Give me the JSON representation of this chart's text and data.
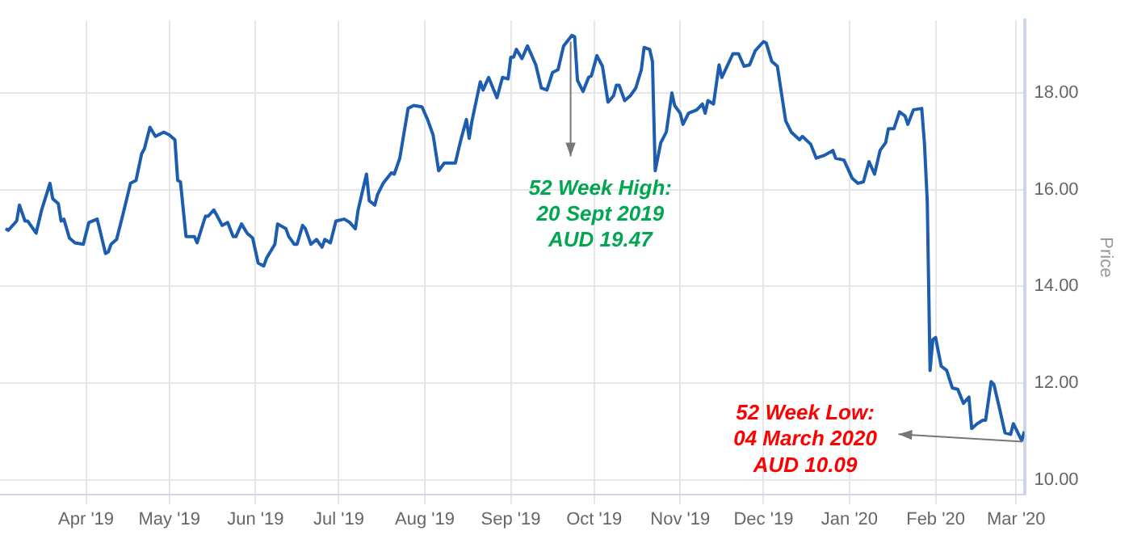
{
  "chart_data": {
    "type": "line",
    "ylabel": "Price",
    "annotations": [
      "52 Week High:\n20 Sept 2019\nAUD 19.47",
      "52 Week Low:\n04 March 2020\nAUD 10.09"
    ],
    "x": [
      "2019-03-03",
      "2019-03-04",
      "2019-03-07",
      "2019-03-08",
      "2019-03-10",
      "2019-03-11",
      "2019-03-14",
      "2019-03-16",
      "2019-03-19",
      "2019-03-20",
      "2019-03-22",
      "2019-03-23",
      "2019-03-24",
      "2019-03-26",
      "2019-03-28",
      "2019-03-31",
      "2019-04-02",
      "2019-04-05",
      "2019-04-06",
      "2019-04-08",
      "2019-04-09",
      "2019-04-10",
      "2019-04-12",
      "2019-04-14",
      "2019-04-17",
      "2019-04-19",
      "2019-04-21",
      "2019-04-22",
      "2019-04-24",
      "2019-04-26",
      "2019-04-29",
      "2019-05-01",
      "2019-05-03",
      "2019-05-04",
      "2019-05-05",
      "2019-05-07",
      "2019-05-10",
      "2019-05-11",
      "2019-05-14",
      "2019-05-15",
      "2019-05-17",
      "2019-05-18",
      "2019-05-20",
      "2019-05-22",
      "2019-05-24",
      "2019-05-25",
      "2019-05-27",
      "2019-05-29",
      "2019-05-31",
      "2019-06-02",
      "2019-06-04",
      "2019-06-05",
      "2019-06-08",
      "2019-06-09",
      "2019-06-12",
      "2019-06-13",
      "2019-06-15",
      "2019-06-16",
      "2019-06-18",
      "2019-06-19",
      "2019-06-21",
      "2019-06-23",
      "2019-06-25",
      "2019-06-26",
      "2019-06-28",
      "2019-06-30",
      "2019-07-03",
      "2019-07-05",
      "2019-07-07",
      "2019-07-08",
      "2019-07-11",
      "2019-07-12",
      "2019-07-14",
      "2019-07-15",
      "2019-07-17",
      "2019-07-20",
      "2019-07-21",
      "2019-07-23",
      "2019-07-26",
      "2019-07-28",
      "2019-07-31",
      "2019-08-02",
      "2019-08-04",
      "2019-08-06",
      "2019-08-08",
      "2019-08-12",
      "2019-08-14",
      "2019-08-16",
      "2019-08-17",
      "2019-08-18",
      "2019-08-21",
      "2019-08-22",
      "2019-08-24",
      "2019-08-27",
      "2019-08-29",
      "2019-08-31",
      "2019-09-01",
      "2019-09-02",
      "2019-09-03",
      "2019-09-05",
      "2019-09-07",
      "2019-09-10",
      "2019-09-12",
      "2019-09-14",
      "2019-09-16",
      "2019-09-18",
      "2019-09-20",
      "2019-09-23",
      "2019-09-24",
      "2019-09-25",
      "2019-09-27",
      "2019-09-29",
      "2019-09-30",
      "2019-10-02",
      "2019-10-04",
      "2019-10-06",
      "2019-10-08",
      "2019-10-09",
      "2019-10-10",
      "2019-10-12",
      "2019-10-14",
      "2019-10-16",
      "2019-10-18",
      "2019-10-19",
      "2019-10-21",
      "2019-10-22",
      "2019-10-23",
      "2019-10-25",
      "2019-10-27",
      "2019-10-29",
      "2019-10-30",
      "2019-11-01",
      "2019-11-02",
      "2019-11-04",
      "2019-11-07",
      "2019-11-09",
      "2019-11-10",
      "2019-11-11",
      "2019-11-13",
      "2019-11-15",
      "2019-11-16",
      "2019-11-20",
      "2019-11-22",
      "2019-11-24",
      "2019-11-26",
      "2019-11-28",
      "2019-12-01",
      "2019-12-02",
      "2019-12-04",
      "2019-12-06",
      "2019-12-09",
      "2019-12-11",
      "2019-12-14",
      "2019-12-15",
      "2019-12-18",
      "2019-12-20",
      "2019-12-23",
      "2019-12-26",
      "2019-12-27",
      "2019-12-30",
      "2020-01-02",
      "2020-01-04",
      "2020-01-06",
      "2020-01-08",
      "2020-01-10",
      "2020-01-12",
      "2020-01-14",
      "2020-01-15",
      "2020-01-17",
      "2020-01-19",
      "2020-01-21",
      "2020-01-22",
      "2020-01-24",
      "2020-01-27",
      "2020-01-28",
      "2020-01-29",
      "2020-01-30",
      "2020-01-31",
      "2020-02-01",
      "2020-02-03",
      "2020-02-05",
      "2020-02-07",
      "2020-02-09",
      "2020-02-11",
      "2020-02-13",
      "2020-02-14",
      "2020-02-16",
      "2020-02-18",
      "2020-02-19",
      "2020-02-21",
      "2020-02-22",
      "2020-02-24",
      "2020-02-26",
      "2020-02-28",
      "2020-02-29",
      "2020-03-03",
      "2020-03-04"
    ],
    "series": [
      {
        "color": "#1c5db0",
        "values": [
          15.19,
          15.16,
          15.35,
          15.68,
          15.35,
          15.35,
          15.1,
          15.58,
          16.13,
          15.81,
          15.71,
          15.35,
          15.39,
          15.0,
          14.9,
          14.87,
          15.32,
          15.39,
          15.16,
          14.68,
          14.71,
          14.87,
          14.97,
          15.42,
          16.13,
          16.19,
          16.74,
          16.84,
          17.29,
          17.1,
          17.19,
          17.13,
          17.03,
          16.19,
          16.16,
          15.03,
          15.03,
          14.9,
          15.45,
          15.45,
          15.58,
          15.48,
          15.26,
          15.32,
          15.03,
          15.03,
          15.29,
          15.1,
          15.0,
          14.48,
          14.42,
          14.58,
          14.87,
          15.29,
          15.19,
          15.03,
          14.87,
          14.87,
          15.26,
          15.19,
          14.87,
          14.97,
          14.81,
          14.97,
          14.9,
          15.35,
          15.39,
          15.32,
          15.19,
          15.58,
          16.32,
          15.77,
          15.68,
          15.9,
          16.13,
          16.35,
          16.32,
          16.65,
          17.68,
          17.74,
          17.71,
          17.45,
          17.13,
          16.39,
          16.55,
          16.55,
          17.03,
          17.45,
          17.06,
          17.42,
          18.23,
          18.06,
          18.32,
          17.9,
          18.32,
          18.29,
          18.74,
          18.74,
          18.9,
          18.71,
          18.97,
          18.58,
          18.1,
          18.06,
          18.42,
          18.48,
          18.97,
          19.19,
          19.16,
          18.26,
          18.03,
          18.32,
          18.35,
          18.77,
          18.55,
          17.81,
          17.94,
          18.16,
          18.16,
          17.84,
          17.94,
          18.1,
          18.48,
          18.94,
          18.9,
          18.65,
          16.39,
          16.97,
          17.19,
          18.0,
          17.74,
          17.58,
          17.35,
          17.58,
          17.65,
          17.77,
          17.58,
          17.84,
          17.77,
          18.58,
          18.32,
          18.81,
          18.81,
          18.55,
          18.58,
          18.87,
          19.06,
          19.03,
          18.65,
          18.55,
          17.42,
          17.19,
          17.03,
          17.1,
          16.94,
          16.65,
          16.71,
          16.81,
          16.65,
          16.61,
          16.23,
          16.13,
          16.16,
          16.58,
          16.32,
          16.81,
          16.97,
          17.26,
          17.26,
          17.61,
          17.52,
          17.35,
          17.65,
          17.68,
          16.94,
          15.74,
          12.26,
          12.9,
          12.94,
          12.35,
          12.26,
          11.9,
          11.87,
          11.58,
          11.71,
          11.06,
          11.16,
          11.23,
          11.23,
          12.03,
          11.97,
          11.48,
          10.97,
          10.94,
          11.16,
          10.81,
          11.0
        ]
      }
    ],
    "xlim": [
      "2019-03-01",
      "2020-03-04"
    ],
    "xticks": [
      {
        "value": "2019-04-01",
        "label": "Apr '19"
      },
      {
        "value": "2019-05-01",
        "label": "May '19"
      },
      {
        "value": "2019-06-01",
        "label": "Jun '19"
      },
      {
        "value": "2019-07-01",
        "label": "Jul '19"
      },
      {
        "value": "2019-08-01",
        "label": "Aug '19"
      },
      {
        "value": "2019-09-01",
        "label": "Sep '19"
      },
      {
        "value": "2019-10-01",
        "label": "Oct '19"
      },
      {
        "value": "2019-11-01",
        "label": "Nov '19"
      },
      {
        "value": "2019-12-01",
        "label": "Dec '19"
      },
      {
        "value": "2020-01-01",
        "label": "Jan '20"
      },
      {
        "value": "2020-02-01",
        "label": "Feb '20"
      },
      {
        "value": "2020-03-01",
        "label": "Mar '20"
      }
    ],
    "ylim": [
      9.7,
      19.5
    ],
    "yticks": [
      {
        "value": 10,
        "label": "10.00"
      },
      {
        "value": 12,
        "label": "12.00"
      },
      {
        "value": 14,
        "label": "14.00"
      },
      {
        "value": 16,
        "label": "16.00"
      },
      {
        "value": 18,
        "label": "18.00"
      }
    ],
    "grid": true,
    "marker": "none",
    "line_style": "solid"
  }
}
